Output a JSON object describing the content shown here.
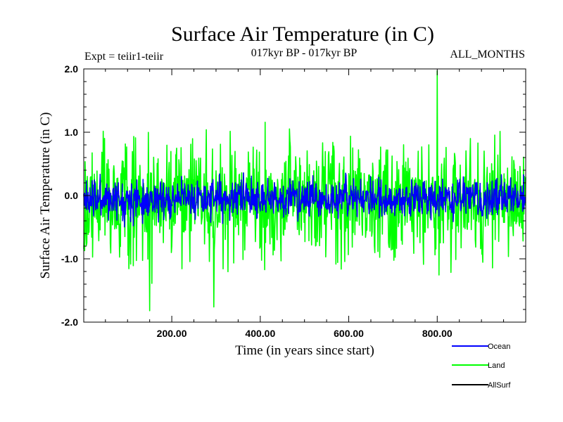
{
  "chart_data": {
    "type": "line",
    "title": "Surface Air Temperature (in C)",
    "subtitle_left": "Expt = teiir1-teiir",
    "subtitle_center": "017kyr BP - 017kyr BP",
    "subtitle_right": "ALL_MONTHS",
    "xlabel": "Time (in years since start)",
    "ylabel": "Surface Air Temperature (in C)",
    "xlim": [
      1,
      1000
    ],
    "ylim": [
      -2.0,
      2.0
    ],
    "x_ticks": [
      200,
      400,
      600,
      800
    ],
    "x_tick_labels": [
      "200.00",
      "400.00",
      "600.00",
      "800.00"
    ],
    "y_ticks": [
      -2.0,
      -1.0,
      0.0,
      1.0,
      2.0
    ],
    "y_tick_labels": [
      "-2.0",
      "-1.0",
      "0.0",
      "1.0",
      "2.0"
    ],
    "grid": false,
    "legend_position": "bottom-right",
    "series_generation": {
      "n_points": 1000,
      "x_start": 1,
      "x_step": 1
    },
    "series": [
      {
        "name": "Ocean",
        "color": "#0000ff",
        "mean": -0.05,
        "spread": 0.18,
        "observed_min": -0.85,
        "observed_max": 0.5,
        "seed": 11
      },
      {
        "name": "Land",
        "color": "#00ff00",
        "mean": -0.1,
        "spread": 0.55,
        "observed_min": -1.82,
        "observed_max": 1.97,
        "seed": 29
      },
      {
        "name": "AllSurf",
        "color": "#000000",
        "mean": -0.05,
        "spread": 0.18,
        "observed_min": -0.85,
        "observed_max": 0.5,
        "seed": 11,
        "hidden_under": "Ocean"
      }
    ],
    "notable_points": [
      {
        "series": "Land",
        "x": 800,
        "y": 1.97
      },
      {
        "series": "Land",
        "x": 150,
        "y": -1.82
      },
      {
        "series": "Land",
        "x": 295,
        "y": -1.76
      }
    ]
  }
}
